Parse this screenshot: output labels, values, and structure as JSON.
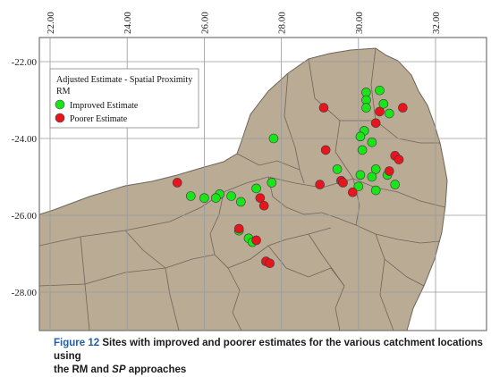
{
  "map": {
    "x_ticks": [
      "22.00",
      "24.00",
      "26.00",
      "28.00",
      "30.00",
      "32.00"
    ],
    "y_ticks": [
      "-22.00",
      "-24.00",
      "-26.00",
      "-28.00"
    ],
    "colors": {
      "land": "#b9ab94",
      "border": "#6e655a",
      "grid": "#9a9a9a",
      "improved": "#19e619",
      "poorer": "#e8141e"
    }
  },
  "legend": {
    "title": "Adjusted Estimate - Spatial Proximity",
    "subtitle": "RM",
    "items": [
      {
        "label": "Improved Estimate",
        "color": "#19e619"
      },
      {
        "label": "Poorer Estimate",
        "color": "#e8141e"
      }
    ]
  },
  "sites": {
    "improved": [
      [
        30.2,
        -22.8
      ],
      [
        30.55,
        -22.75
      ],
      [
        30.2,
        -23.0
      ],
      [
        30.65,
        -23.1
      ],
      [
        30.2,
        -23.2
      ],
      [
        30.8,
        -23.35
      ],
      [
        27.8,
        -24.0
      ],
      [
        30.15,
        -23.8
      ],
      [
        30.05,
        -23.95
      ],
      [
        30.35,
        -24.1
      ],
      [
        30.1,
        -24.3
      ],
      [
        29.45,
        -24.8
      ],
      [
        30.45,
        -24.8
      ],
      [
        30.05,
        -24.95
      ],
      [
        30.75,
        -24.95
      ],
      [
        30.35,
        -25.0
      ],
      [
        27.75,
        -25.15
      ],
      [
        30.0,
        -25.25
      ],
      [
        30.95,
        -25.2
      ],
      [
        30.45,
        -25.35
      ],
      [
        27.35,
        -25.3
      ],
      [
        25.65,
        -25.5
      ],
      [
        26.4,
        -25.45
      ],
      [
        26.7,
        -25.5
      ],
      [
        26.3,
        -25.55
      ],
      [
        26.0,
        -25.55
      ],
      [
        26.95,
        -25.65
      ],
      [
        26.9,
        -26.4
      ],
      [
        27.15,
        -26.6
      ],
      [
        27.25,
        -26.7
      ]
    ],
    "poorer": [
      [
        30.55,
        -23.3
      ],
      [
        29.1,
        -23.2
      ],
      [
        31.15,
        -23.2
      ],
      [
        30.45,
        -23.6
      ],
      [
        29.15,
        -24.3
      ],
      [
        30.95,
        -24.45
      ],
      [
        31.05,
        -24.55
      ],
      [
        30.8,
        -24.85
      ],
      [
        25.3,
        -25.15
      ],
      [
        29.55,
        -25.1
      ],
      [
        29.6,
        -25.15
      ],
      [
        29.0,
        -25.2
      ],
      [
        29.85,
        -25.4
      ],
      [
        27.45,
        -25.55
      ],
      [
        27.55,
        -25.75
      ],
      [
        26.9,
        -26.35
      ],
      [
        27.35,
        -26.65
      ],
      [
        27.6,
        -27.2
      ],
      [
        27.7,
        -27.25
      ]
    ]
  },
  "caption": {
    "label": "Figure 12",
    "line1": " Sites with improved and poorer estimates for the various catchment locations using",
    "line2_pre": "the RM and ",
    "line2_em": "SP",
    "line2_post": " approaches"
  }
}
